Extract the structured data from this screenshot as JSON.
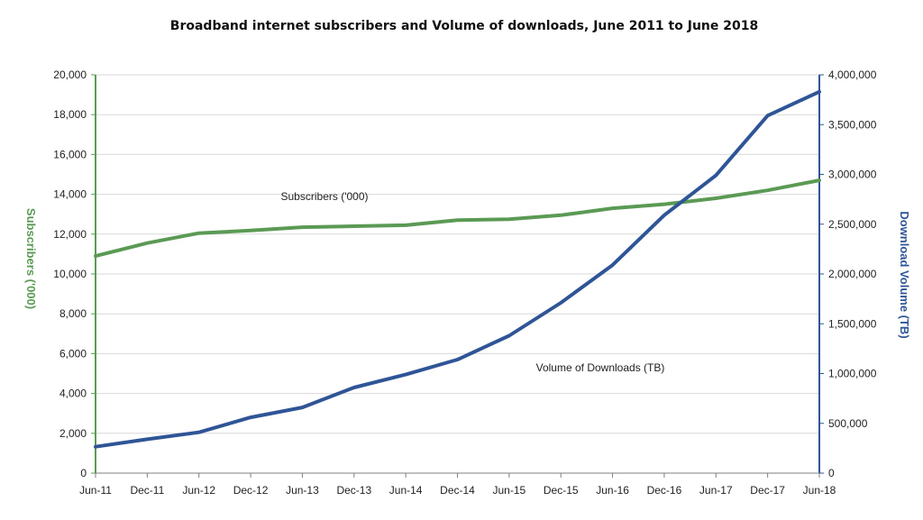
{
  "chart_data": {
    "type": "line",
    "title": "Broadband internet subscribers and Volume of downloads, June 2011  to June 2018",
    "categories": [
      "Jun-11",
      "Dec-11",
      "Jun-12",
      "Dec-12",
      "Jun-13",
      "Dec-13",
      "Jun-14",
      "Dec-14",
      "Jun-15",
      "Dec-15",
      "Jun-16",
      "Dec-16",
      "Jun-17",
      "Dec-17",
      "Jun-18"
    ],
    "y_left": {
      "label": "Subscribers ('000)",
      "range": [
        0,
        20000
      ],
      "ticks": [
        "0",
        "2,000",
        "4,000",
        "6,000",
        "8,000",
        "10,000",
        "12,000",
        "14,000",
        "16,000",
        "18,000",
        "20,000"
      ],
      "color": "#5a9a55"
    },
    "y_right": {
      "label": "Download Volume (TB)",
      "range": [
        0,
        4000000
      ],
      "ticks": [
        "0",
        "500,000",
        "1,000,000",
        "1,500,000",
        "2,000,000",
        "2,500,000",
        "3,000,000",
        "3,500,000",
        "4,000,000"
      ],
      "color": "#2f5596"
    },
    "series": [
      {
        "name": "Subscribers ('000)",
        "axis": "left",
        "color": "#5a9a55",
        "values": [
          10900,
          11550,
          12050,
          12180,
          12350,
          12400,
          12450,
          12700,
          12750,
          12950,
          13300,
          13500,
          13800,
          14200,
          14700
        ]
      },
      {
        "name": "Volume of Downloads (TB)",
        "axis": "right",
        "color": "#2f5596",
        "values": [
          265000,
          340000,
          410000,
          560000,
          660000,
          860000,
          990000,
          1140000,
          1380000,
          1710000,
          2090000,
          2590000,
          2990000,
          3590000,
          3830000
        ]
      }
    ],
    "annotations": [
      {
        "text": "Subscribers ('000)",
        "series": 0
      },
      {
        "text": "Volume of Downloads (TB)",
        "series": 1
      }
    ],
    "grid": true,
    "legend": "none"
  }
}
